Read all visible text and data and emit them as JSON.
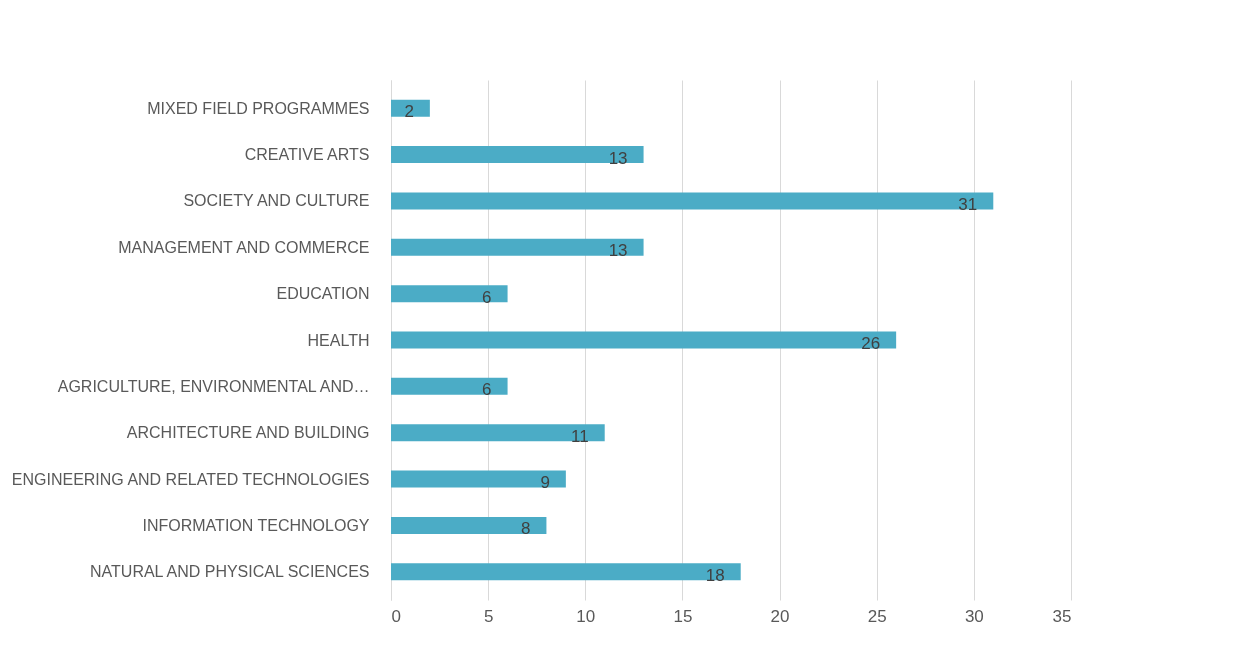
{
  "chart_data": {
    "type": "bar",
    "orientation": "horizontal",
    "categories": [
      "MIXED FIELD PROGRAMMES",
      "CREATIVE ARTS",
      "SOCIETY AND CULTURE",
      "MANAGEMENT AND COMMERCE",
      "EDUCATION",
      "HEALTH",
      "AGRICULTURE, ENVIRONMENTAL AND…",
      "ARCHITECTURE AND BUILDING",
      "ENGINEERING AND RELATED TECHNOLOGIES",
      "INFORMATION TECHNOLOGY",
      "NATURAL AND PHYSICAL SCIENCES"
    ],
    "values": [
      2,
      13,
      31,
      13,
      6,
      26,
      6,
      11,
      9,
      8,
      18
    ],
    "color": "#4bacc6",
    "xlim": [
      0,
      35
    ],
    "xticks": [
      0,
      5,
      10,
      15,
      20,
      25,
      30,
      35
    ],
    "grid": "x",
    "data_labels": true
  }
}
